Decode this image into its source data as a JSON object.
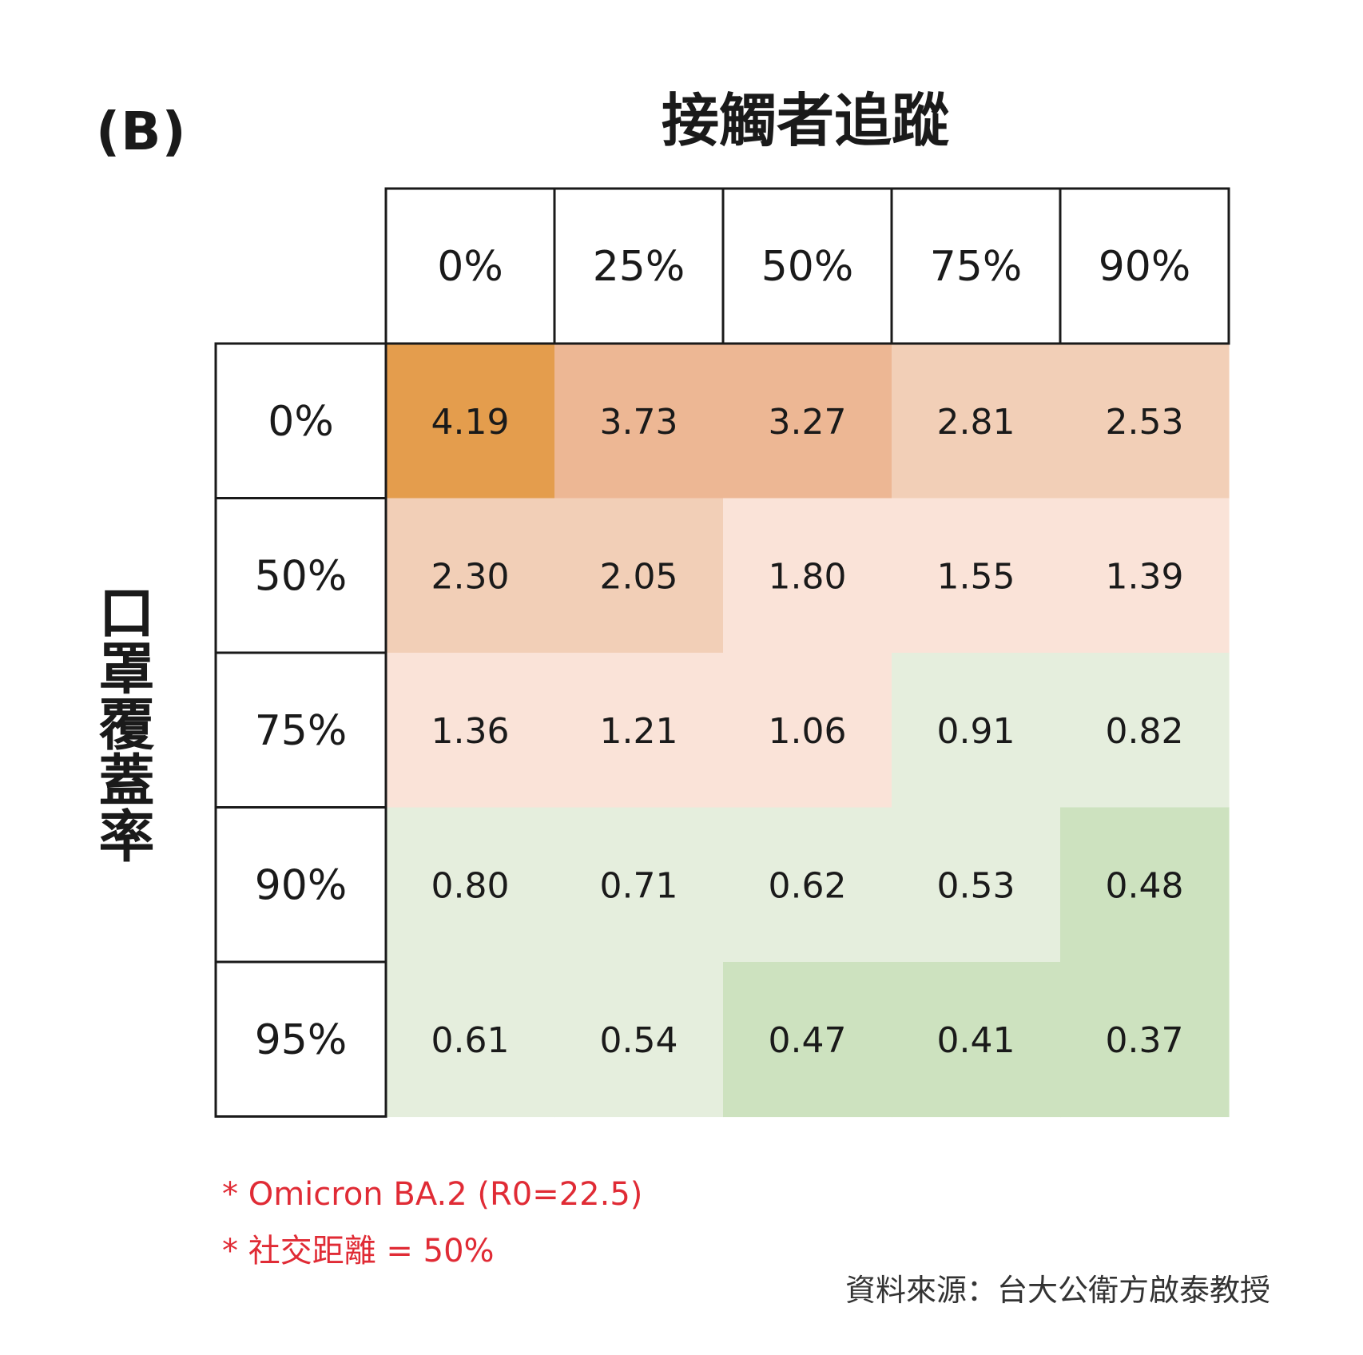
{
  "panel_label": "(B)",
  "notes": [
    "* Omicron BA.2 (R0=22.5)",
    "* 社交距離 = 50%"
  ],
  "source": "資料來源：台大公衛方啟泰教授",
  "colors": {
    "level_4": "#e49d4d",
    "level_3": "#edb794",
    "level_2": "#f2cfb7",
    "level_1": "#fae3d8",
    "level_0": "#e5eedd",
    "level_min": "#cde2bf",
    "note_text": "#e02b35"
  },
  "chart_data": {
    "type": "heatmap",
    "title": "",
    "xlabel": "接觸者追蹤",
    "ylabel": "口罩覆蓋率",
    "x_categories": [
      "0%",
      "25%",
      "50%",
      "75%",
      "90%"
    ],
    "y_categories": [
      "0%",
      "50%",
      "75%",
      "90%",
      "95%"
    ],
    "values": [
      [
        "4.19",
        "3.73",
        "3.27",
        "2.81",
        "2.53"
      ],
      [
        "2.30",
        "2.05",
        "1.80",
        "1.55",
        "1.39"
      ],
      [
        "1.36",
        "1.21",
        "1.06",
        "0.91",
        "0.82"
      ],
      [
        "0.80",
        "0.71",
        "0.62",
        "0.53",
        "0.48"
      ],
      [
        "0.61",
        "0.54",
        "0.47",
        "0.41",
        "0.37"
      ]
    ],
    "color_levels": [
      [
        4,
        3,
        3,
        2,
        2
      ],
      [
        2,
        2,
        1,
        1,
        1
      ],
      [
        1,
        1,
        1,
        0,
        0
      ],
      [
        0,
        0,
        0,
        0,
        -1
      ],
      [
        0,
        0,
        -1,
        -1,
        -1
      ]
    ],
    "grid": false,
    "legend": "none"
  }
}
